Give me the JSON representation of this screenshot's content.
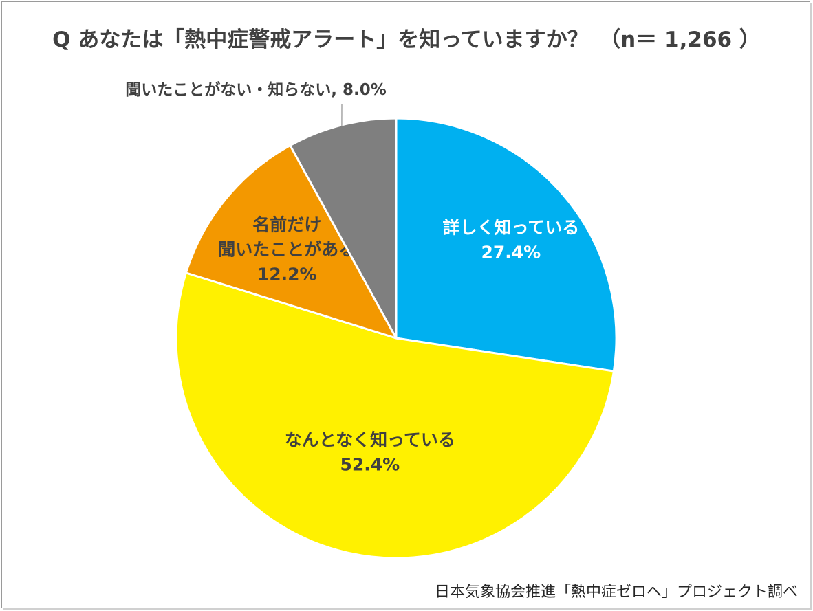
{
  "title": "Q あなたは「熱中症警戒アラート」を知っていますか？　（n＝ 1,266 ）",
  "source": "日本気象協会推進「熱中症ゼロへ」プロジェクト調べ",
  "chart_data": {
    "type": "pie",
    "title": "Q あなたは「熱中症警戒アラート」を知っていますか？　（n＝ 1,266 ）",
    "slices": [
      {
        "label": "詳しく知っている",
        "value": 27.4,
        "value_text": "27.4%",
        "color": "#00b0f0",
        "text_color": "#ffffff"
      },
      {
        "label": "なんとなく知っている",
        "value": 52.4,
        "value_text": "52.4%",
        "color": "#fff100",
        "text_color": "#404040"
      },
      {
        "label": "名前だけ\n聞いたことがある",
        "value": 12.2,
        "value_text": "12.2%",
        "color": "#f39800",
        "text_color": "#404040"
      },
      {
        "label": "聞いたことがない・知らない",
        "value": 8.0,
        "value_text": "8.0%",
        "color": "#7f7f7f",
        "text_color": "#404040",
        "outside_label": true
      }
    ],
    "start": "12 o'clock",
    "direction": "clockwise",
    "legend": "none"
  }
}
